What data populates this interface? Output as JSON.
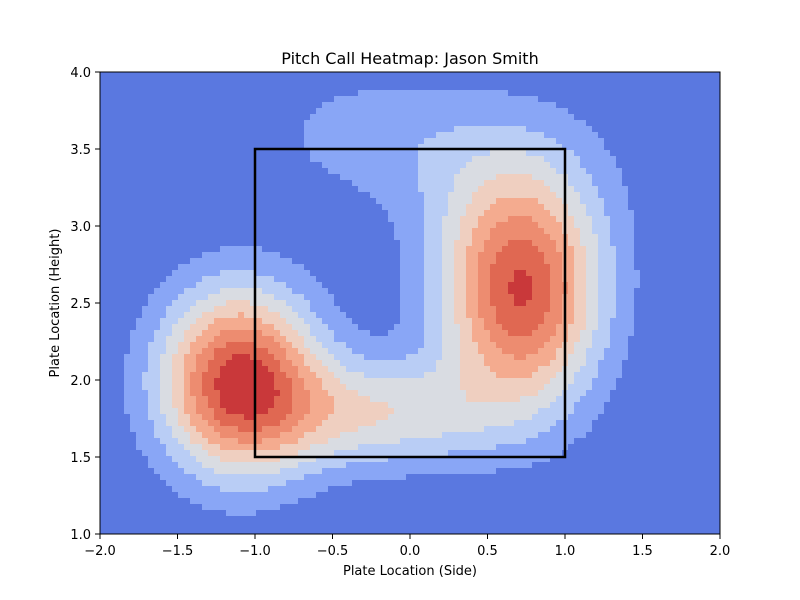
{
  "chart_data": {
    "type": "heatmap",
    "title": "Pitch Call Heatmap: Jason Smith",
    "xlabel": "Plate Location (Side)",
    "ylabel": "Plate Location (Height)",
    "xlim": [
      -2.0,
      2.0
    ],
    "ylim": [
      1.0,
      4.0
    ],
    "x_ticks": [
      "−2.0",
      "−1.5",
      "−1.0",
      "−0.5",
      "0.0",
      "0.5",
      "1.0",
      "1.5",
      "2.0"
    ],
    "y_ticks": [
      "1.0",
      "1.5",
      "2.0",
      "2.5",
      "3.0",
      "3.5",
      "4.0"
    ],
    "grid": false,
    "colormap": "coolwarm",
    "contour_levels": 8,
    "level_colors": [
      "#5a78e0",
      "#89a6f6",
      "#b9cdf5",
      "#d9dce2",
      "#efcfc0",
      "#f4ab8f",
      "#ed8c70",
      "#e06852",
      "#c9383a"
    ],
    "density_components": [
      {
        "x": -1.1,
        "y": 2.0,
        "sx": 0.36,
        "sy": 0.42,
        "weight": 1.0
      },
      {
        "x": 0.72,
        "y": 2.55,
        "sx": 0.36,
        "sy": 0.5,
        "weight": 0.95
      },
      {
        "x": -0.2,
        "y": 1.78,
        "sx": 0.55,
        "sy": 0.25,
        "weight": 0.45
      },
      {
        "x": -0.3,
        "y": 3.6,
        "sx": 0.5,
        "sy": 0.3,
        "weight": 0.16
      },
      {
        "x": 0.6,
        "y": 3.3,
        "sx": 0.5,
        "sy": 0.4,
        "weight": 0.2
      }
    ],
    "strike_zone": {
      "x0": -1.0,
      "x1": 1.0,
      "y0": 1.5,
      "y1": 3.5
    },
    "legend": "none"
  }
}
